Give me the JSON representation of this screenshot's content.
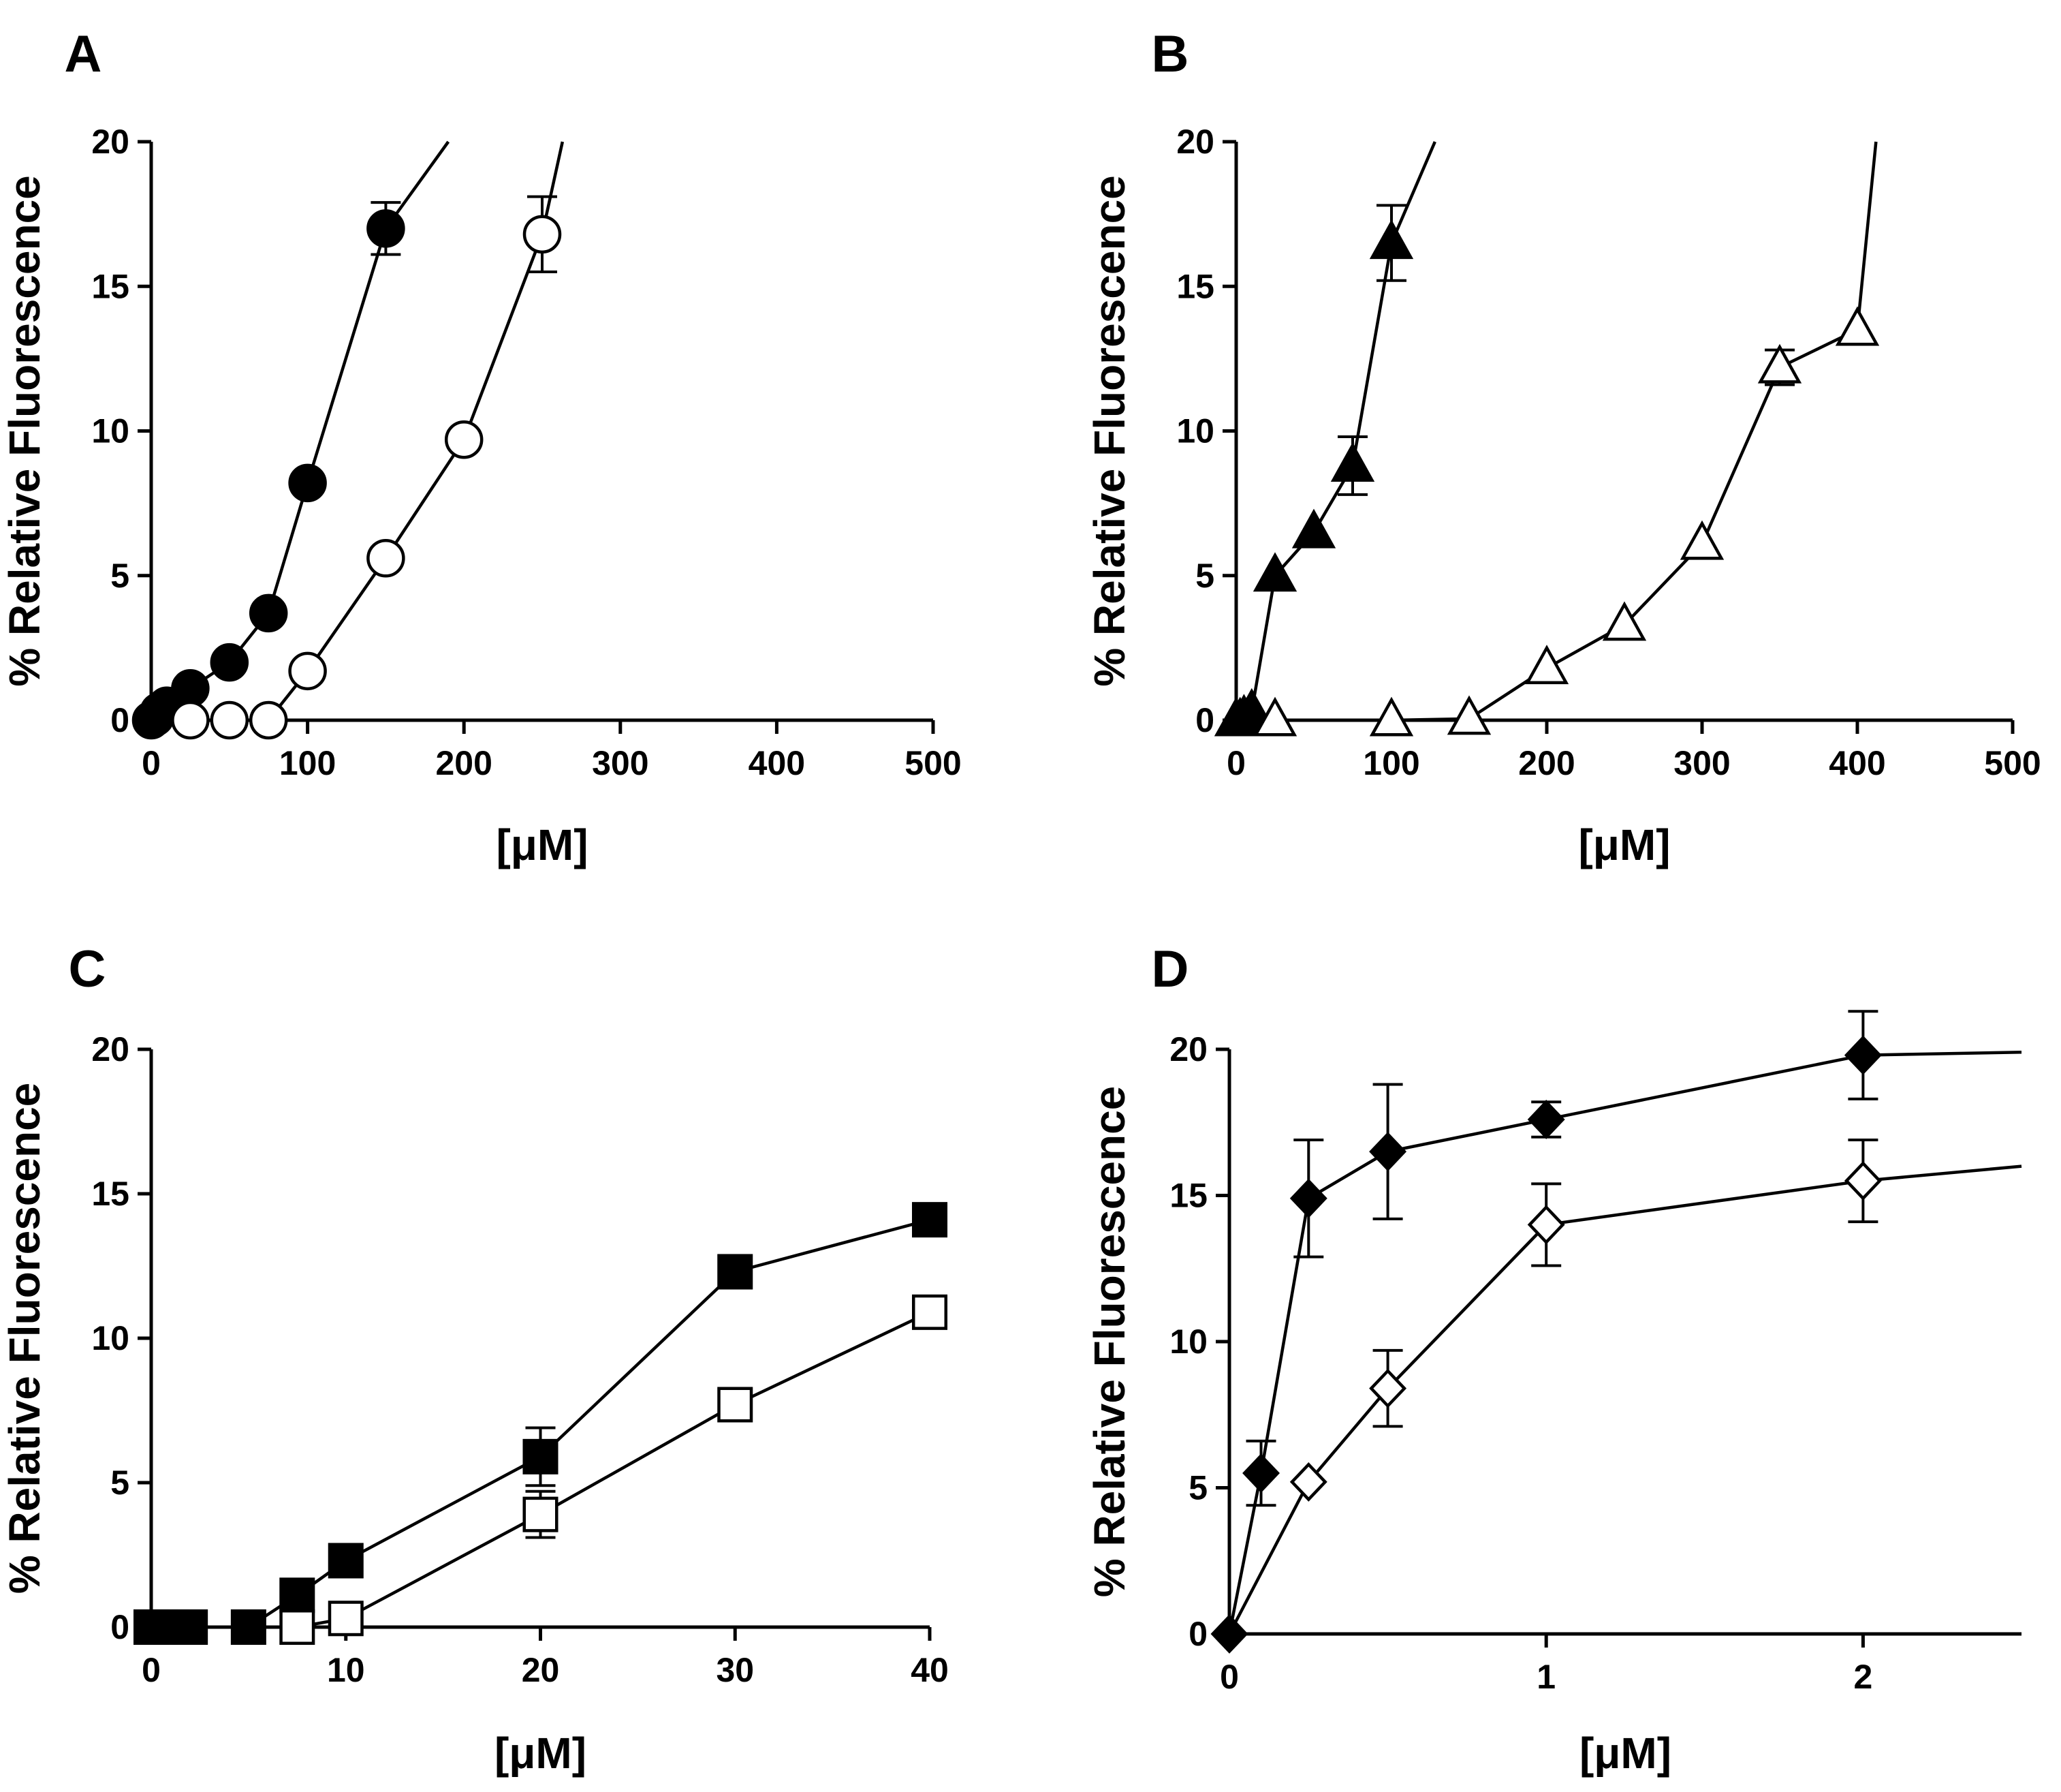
{
  "figure": {
    "panels": [
      "A",
      "B",
      "C",
      "D"
    ]
  },
  "chart_data": [
    {
      "panel": "A",
      "type": "line",
      "title": "",
      "xlabel": "[μM]",
      "ylabel": "% Relative Fluorescence",
      "xlim": [
        0,
        500
      ],
      "ylim": [
        0,
        20
      ],
      "xticks": [
        0,
        100,
        200,
        300,
        400,
        500
      ],
      "yticks": [
        0,
        5,
        10,
        15,
        20
      ],
      "series": [
        {
          "name": "filled circle",
          "marker": "circle",
          "filled": true,
          "x": [
            0,
            2.5,
            5,
            10,
            25,
            50,
            75,
            100,
            150
          ],
          "y": [
            0,
            0.1,
            0.3,
            0.5,
            1.1,
            2.0,
            3.7,
            8.2,
            17.0
          ],
          "err": [
            0,
            0,
            0,
            0,
            0,
            0,
            0,
            0,
            0.9
          ],
          "line_extension": [
            190,
            20
          ]
        },
        {
          "name": "open circle",
          "marker": "circle",
          "filled": false,
          "x": [
            25,
            50,
            75,
            100,
            150,
            200,
            250
          ],
          "y": [
            0,
            0,
            0,
            1.7,
            5.6,
            9.7,
            16.8
          ],
          "err": [
            0,
            0,
            0,
            0,
            0,
            0,
            1.3
          ],
          "line_extension": [
            263,
            20
          ]
        }
      ]
    },
    {
      "panel": "B",
      "type": "line",
      "title": "",
      "xlabel": "[μM]",
      "ylabel": "% Relative Fluorescence",
      "xlim": [
        0,
        500
      ],
      "ylim": [
        0,
        20
      ],
      "xticks": [
        0,
        100,
        200,
        300,
        400,
        500
      ],
      "yticks": [
        0,
        5,
        10,
        15,
        20
      ],
      "series": [
        {
          "name": "filled triangle",
          "marker": "triangle",
          "filled": true,
          "x": [
            0,
            2.5,
            5,
            10,
            25,
            50,
            75,
            100
          ],
          "y": [
            0,
            0,
            0.1,
            0.3,
            5.0,
            6.5,
            8.8,
            16.5
          ],
          "err": [
            0,
            0,
            0,
            0,
            0,
            0,
            1.0,
            1.3
          ],
          "line_extension": [
            128,
            20
          ]
        },
        {
          "name": "open triangle",
          "marker": "triangle",
          "filled": false,
          "x": [
            25,
            100,
            150,
            200,
            250,
            300,
            350,
            400
          ],
          "y": [
            0,
            0,
            0.05,
            1.8,
            3.3,
            6.1,
            12.2,
            13.5
          ],
          "err": [
            0,
            0,
            0,
            0,
            0,
            0,
            0.6,
            0
          ],
          "line_extension": [
            412,
            20
          ]
        }
      ]
    },
    {
      "panel": "C",
      "type": "line",
      "title": "",
      "xlabel": "[μM]",
      "ylabel": "% Relative Fluorescence",
      "xlim": [
        0,
        40
      ],
      "ylim": [
        0,
        20
      ],
      "xticks": [
        0,
        10,
        20,
        30,
        40
      ],
      "yticks": [
        0,
        5,
        10,
        15,
        20
      ],
      "series": [
        {
          "name": "filled square",
          "marker": "square",
          "filled": true,
          "x": [
            0,
            0.5,
            1,
            2,
            5,
            7.5,
            10,
            20,
            30,
            40
          ],
          "y": [
            0,
            0,
            0,
            0,
            0,
            1.1,
            2.3,
            5.9,
            12.3,
            14.1
          ],
          "err": [
            0,
            0,
            0,
            0,
            0,
            0,
            0,
            1.0,
            0,
            0
          ]
        },
        {
          "name": "open square",
          "marker": "square",
          "filled": false,
          "x": [
            7.5,
            10,
            20,
            30,
            40
          ],
          "y": [
            0,
            0.3,
            3.9,
            7.7,
            10.9
          ],
          "err": [
            0,
            0,
            0.8,
            0,
            0
          ]
        }
      ]
    },
    {
      "panel": "D",
      "type": "line",
      "title": "",
      "xlabel": "[μM]",
      "ylabel": "% Relative Fluorescence",
      "xlim": [
        0,
        2.5
      ],
      "ylim": [
        0,
        20
      ],
      "xticks": [
        0,
        1,
        2
      ],
      "yticks": [
        0,
        5,
        10,
        15,
        20
      ],
      "series": [
        {
          "name": "filled diamond",
          "marker": "diamond",
          "filled": true,
          "x": [
            0,
            0.1,
            0.25,
            0.5,
            1,
            2,
            2.5
          ],
          "y": [
            0,
            5.5,
            14.9,
            16.5,
            17.6,
            19.8,
            19.9
          ],
          "err": [
            0,
            1.1,
            2.0,
            2.3,
            0.6,
            1.5,
            0
          ],
          "marker_mask": [
            true,
            true,
            true,
            true,
            true,
            true,
            false
          ]
        },
        {
          "name": "open diamond",
          "marker": "diamond",
          "filled": false,
          "x": [
            0.25,
            0.5,
            1,
            2,
            2.5
          ],
          "y": [
            5.2,
            8.4,
            14.0,
            15.5,
            16.0
          ],
          "err": [
            0,
            1.3,
            1.4,
            1.4,
            0
          ],
          "marker_mask": [
            true,
            true,
            true,
            true,
            false
          ],
          "line_start": [
            0,
            0
          ]
        }
      ]
    }
  ]
}
